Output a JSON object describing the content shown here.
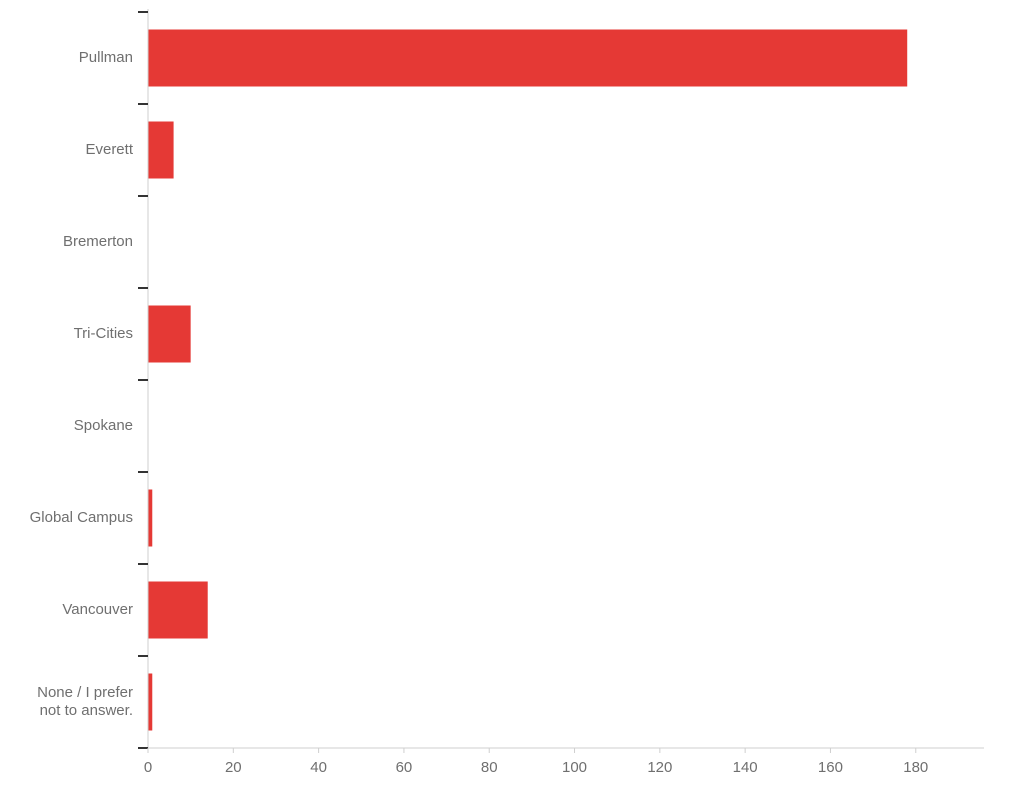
{
  "chart_data": {
    "type": "bar",
    "orientation": "horizontal",
    "categories": [
      [
        "Pullman"
      ],
      [
        "Everett"
      ],
      [
        "Bremerton"
      ],
      [
        "Tri-Cities"
      ],
      [
        "Spokane"
      ],
      [
        "Global Campus"
      ],
      [
        "Vancouver"
      ],
      [
        "None / I prefer",
        "not to answer."
      ]
    ],
    "values": [
      178,
      6,
      0,
      10,
      0,
      1,
      14,
      1
    ],
    "xlim": [
      0,
      196
    ],
    "x_ticks": [
      0,
      20,
      40,
      60,
      80,
      100,
      120,
      140,
      160,
      180
    ],
    "bar_color": "#e53935",
    "grid": false,
    "title": "",
    "xlabel": "",
    "ylabel": ""
  }
}
